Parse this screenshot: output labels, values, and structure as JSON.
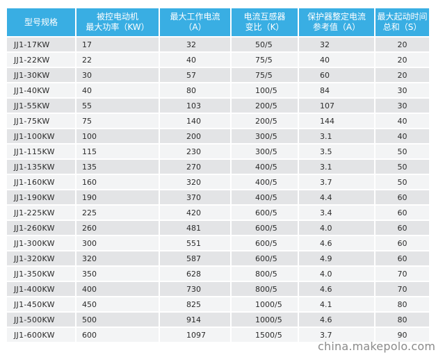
{
  "table": {
    "headers": [
      {
        "line1": "型号规格",
        "line2": ""
      },
      {
        "line1": "被控电动机",
        "line2": "最大功率（KW）"
      },
      {
        "line1": "最大工作电流",
        "line2": "（A）"
      },
      {
        "line1": "电流互感器",
        "line2": "变比（K）"
      },
      {
        "line1": "保护器整定电流",
        "line2": "参考值（A）"
      },
      {
        "line1": "最大起动时间",
        "line2": "总和（S）"
      }
    ],
    "rows": [
      [
        "JJ1-17KW",
        "17",
        "32",
        "50/5",
        "32",
        "20"
      ],
      [
        "JJ1-22KW",
        "22",
        "40",
        "75/5",
        "40",
        "20"
      ],
      [
        "JJ1-30KW",
        "30",
        "57",
        "75/5",
        "60",
        "20"
      ],
      [
        "JJ1-40KW",
        "40",
        "80",
        "100/5",
        "84",
        "30"
      ],
      [
        "JJ1-55KW",
        "55",
        "103",
        "200/5",
        "107",
        "30"
      ],
      [
        "JJ1-75KW",
        "75",
        "140",
        "200/5",
        "144",
        "40"
      ],
      [
        "JJ1-100KW",
        "100",
        "200",
        "300/5",
        "3.1",
        "40"
      ],
      [
        "JJ1-115KW",
        "115",
        "230",
        "300/5",
        "3.5",
        "50"
      ],
      [
        "JJ1-135KW",
        "135",
        "270",
        "400/5",
        "3.1",
        "50"
      ],
      [
        "JJ1-160KW",
        "160",
        "320",
        "400/5",
        "3.7",
        "50"
      ],
      [
        "JJ1-190KW",
        "190",
        "370",
        "400/5",
        "4.4",
        "60"
      ],
      [
        "JJ1-225KW",
        "225",
        "420",
        "600/5",
        "3.4",
        "60"
      ],
      [
        "JJ1-260KW",
        "260",
        "481",
        "600/5",
        "4.0",
        "60"
      ],
      [
        "JJ1-300KW",
        "300",
        "551",
        "600/5",
        "4.6",
        "60"
      ],
      [
        "JJ1-320KW",
        "320",
        "587",
        "600/5",
        "4.9",
        "60"
      ],
      [
        "JJ1-350KW",
        "350",
        "628",
        "800/5",
        "4.0",
        "70"
      ],
      [
        "JJ1-400KW",
        "400",
        "730",
        "800/5",
        "4.6",
        "70"
      ],
      [
        "JJ1-450KW",
        "450",
        "825",
        "1000/5",
        "4.1",
        "80"
      ],
      [
        "JJ1-500KW",
        "500",
        "914",
        "1000/5",
        "4.6",
        "80"
      ],
      [
        "JJ1-600KW",
        "600",
        "1097",
        "1500/5",
        "3.7",
        "90"
      ]
    ]
  },
  "watermark": "china.makepolo.com"
}
